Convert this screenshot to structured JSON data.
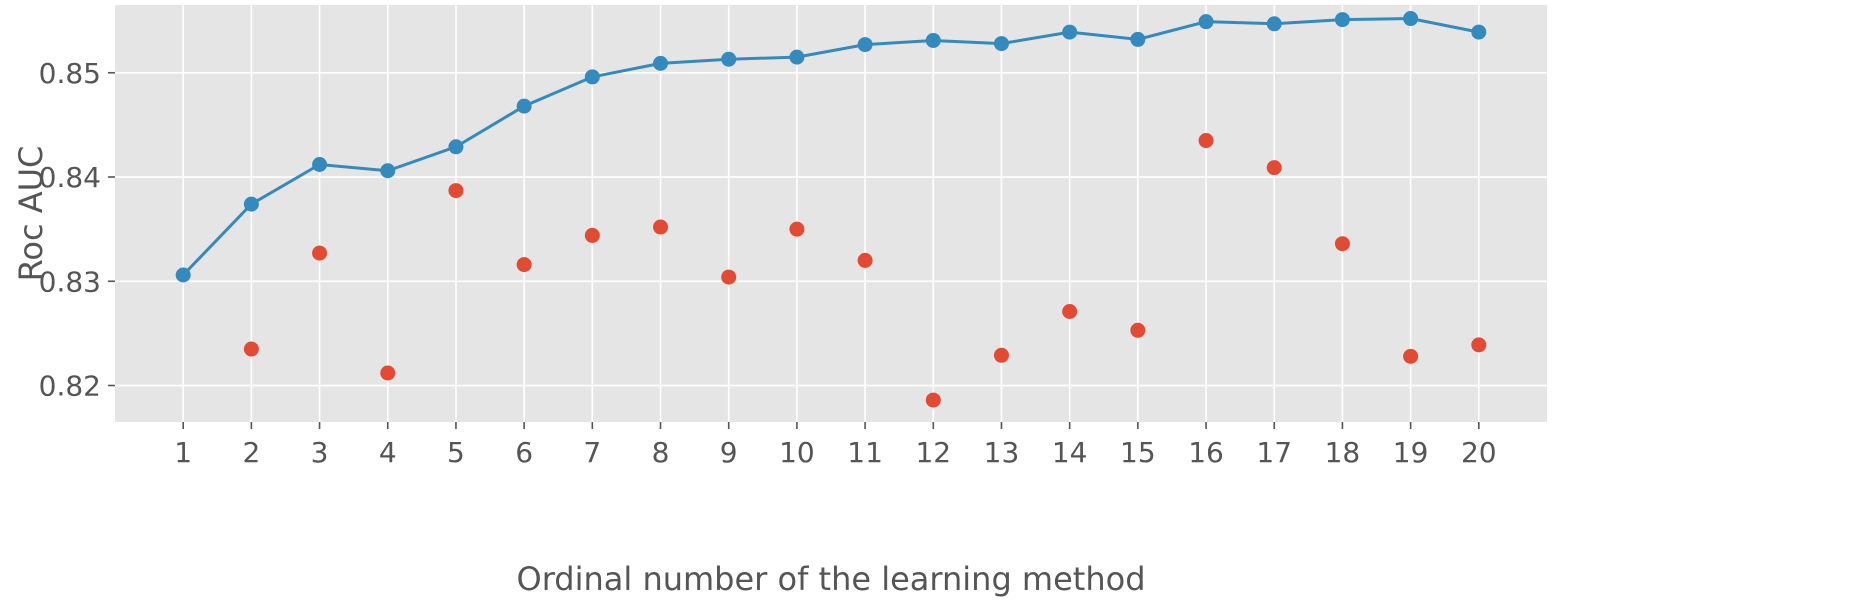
{
  "chart_data": {
    "type": "line",
    "title": "",
    "xlabel": "Ordinal number of the learning method",
    "ylabel": "Roc AUC",
    "x": [
      1,
      2,
      3,
      4,
      5,
      6,
      7,
      8,
      9,
      10,
      11,
      12,
      13,
      14,
      15,
      16,
      17,
      18,
      19,
      20
    ],
    "xlim": [
      0.0,
      21.0
    ],
    "ylim": [
      0.8165,
      0.8565
    ],
    "yticks": [
      "0.82",
      "0.83",
      "0.84",
      "0.85"
    ],
    "grid": true,
    "legend": "none",
    "series": [
      {
        "kind": "line",
        "color": "#348ABD",
        "marker": "circle",
        "values": [
          0.8306,
          0.8374,
          0.8412,
          0.8406,
          0.8429,
          0.8468,
          0.8496,
          0.8509,
          0.8513,
          0.8515,
          0.8527,
          0.8531,
          0.8528,
          0.8539,
          0.8532,
          0.8549,
          0.8547,
          0.8551,
          0.8552,
          0.8539
        ]
      },
      {
        "kind": "scatter",
        "color": "#E24A33",
        "marker": "circle",
        "values": [
          null,
          0.8235,
          0.8327,
          0.8212,
          0.8387,
          0.8316,
          0.8344,
          0.8352,
          0.8304,
          0.835,
          0.832,
          0.8186,
          0.8229,
          0.8271,
          0.8253,
          0.8435,
          0.8409,
          0.8336,
          0.8228,
          0.8239
        ]
      }
    ]
  }
}
